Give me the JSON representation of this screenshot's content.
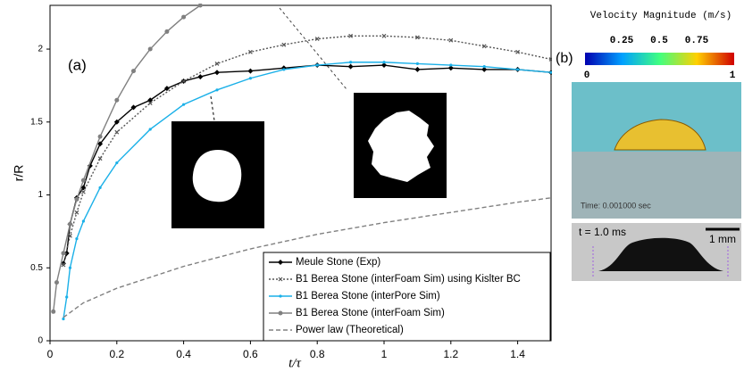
{
  "chart_data": {
    "type": "line",
    "x_label": "t/τ",
    "y_label": "r/R",
    "annotations": [
      "(a)"
    ],
    "xlim": [
      0,
      1.5
    ],
    "ylim": [
      0,
      2.3
    ],
    "xticks": [
      0,
      0.2,
      0.4,
      0.6,
      0.8,
      1,
      1.2,
      1.4
    ],
    "yticks": [
      0,
      0.5,
      1,
      1.5,
      2
    ],
    "legend": "lower-right",
    "series": [
      {
        "name": "Meule Stone (Exp)",
        "color": "#000000",
        "line_style": "solid",
        "marker": "diamond",
        "x": [
          0.04,
          0.05,
          0.06,
          0.08,
          0.1,
          0.12,
          0.15,
          0.2,
          0.25,
          0.3,
          0.35,
          0.4,
          0.45,
          0.5,
          0.6,
          0.7,
          0.8,
          0.9,
          1.0,
          1.1,
          1.2,
          1.3,
          1.4,
          1.5
        ],
        "values": [
          0.53,
          0.6,
          0.8,
          0.98,
          1.05,
          1.2,
          1.35,
          1.5,
          1.6,
          1.65,
          1.73,
          1.78,
          1.81,
          1.84,
          1.85,
          1.87,
          1.89,
          1.88,
          1.89,
          1.86,
          1.87,
          1.86,
          1.86,
          1.84
        ]
      },
      {
        "name": "B1 Berea Stone (interFoam Sim) using Kislter BC",
        "color": "#555555",
        "line_style": "dotted",
        "marker": "x",
        "x": [
          0.04,
          0.06,
          0.08,
          0.1,
          0.15,
          0.2,
          0.3,
          0.4,
          0.5,
          0.6,
          0.7,
          0.8,
          0.9,
          1.0,
          1.1,
          1.2,
          1.3,
          1.4,
          1.5
        ],
        "values": [
          0.52,
          0.72,
          0.88,
          1.02,
          1.25,
          1.43,
          1.63,
          1.78,
          1.9,
          1.98,
          2.03,
          2.07,
          2.09,
          2.09,
          2.08,
          2.06,
          2.02,
          1.98,
          1.93
        ]
      },
      {
        "name": "B1 Berea Stone (interPore Sim)",
        "color": "#1ab0e8",
        "line_style": "solid",
        "marker": "dot",
        "x": [
          0.04,
          0.05,
          0.06,
          0.08,
          0.1,
          0.15,
          0.2,
          0.3,
          0.4,
          0.5,
          0.6,
          0.7,
          0.8,
          0.9,
          1.0,
          1.1,
          1.2,
          1.3,
          1.4,
          1.5
        ],
        "values": [
          0.15,
          0.3,
          0.5,
          0.7,
          0.82,
          1.05,
          1.22,
          1.45,
          1.62,
          1.72,
          1.8,
          1.86,
          1.89,
          1.91,
          1.91,
          1.9,
          1.89,
          1.88,
          1.86,
          1.84
        ]
      },
      {
        "name": "B1 Berea Stone (interFoam Sim)",
        "color": "#808080",
        "line_style": "solid",
        "marker": "circle",
        "x": [
          0.01,
          0.02,
          0.04,
          0.06,
          0.08,
          0.1,
          0.15,
          0.2,
          0.25,
          0.3,
          0.35,
          0.4,
          0.45
        ],
        "values": [
          0.2,
          0.4,
          0.6,
          0.8,
          0.97,
          1.1,
          1.4,
          1.65,
          1.85,
          2.0,
          2.12,
          2.22,
          2.3
        ]
      },
      {
        "name": "Power law (Theoretical)",
        "color": "#808080",
        "line_style": "dashed",
        "marker": null,
        "x": [
          0.04,
          0.1,
          0.2,
          0.4,
          0.6,
          0.8,
          1.0,
          1.2,
          1.4,
          1.5
        ],
        "values": [
          0.16,
          0.26,
          0.36,
          0.51,
          0.63,
          0.73,
          0.81,
          0.88,
          0.95,
          0.98
        ]
      }
    ]
  },
  "panel_b": {
    "label": "(b)",
    "colorbar_title": "Velocity Magnitude (m/s)",
    "colorbar_ticks": [
      "0.25",
      "0.5",
      "0.75"
    ],
    "colorbar_min": "0",
    "colorbar_max": "1",
    "sim_time": "Time: 0.001000 sec",
    "photo_time": "t = 1.0 ms",
    "scale_bar": "1 mm"
  }
}
